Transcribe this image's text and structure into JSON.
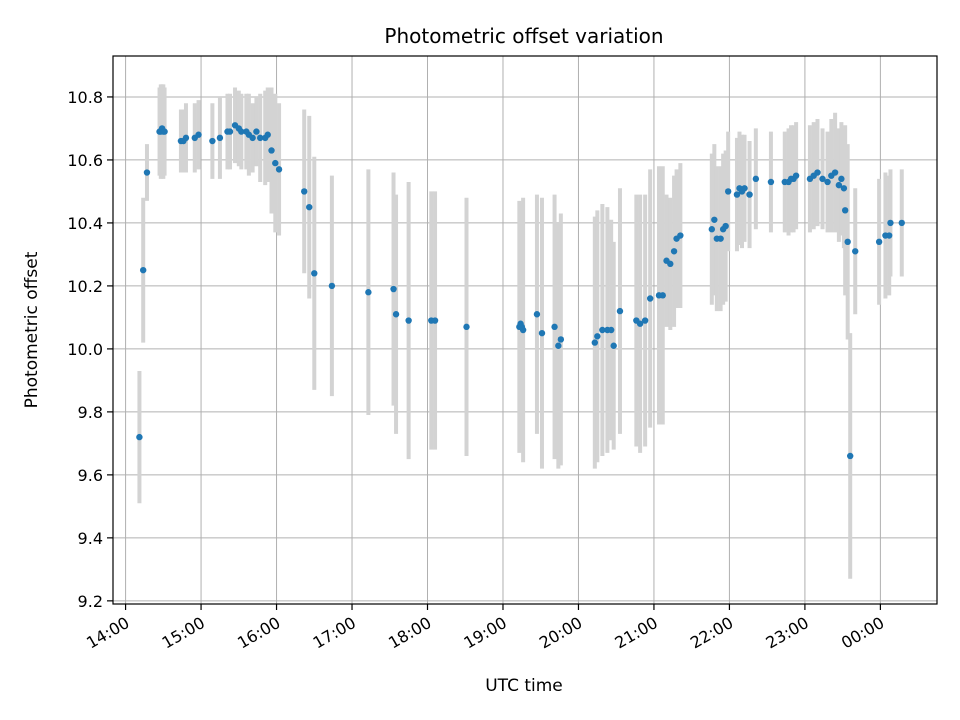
{
  "chart_data": {
    "type": "scatter",
    "title": "Photometric offset variation",
    "xlabel": "UTC time",
    "ylabel": "Photometric offset",
    "x_ticks": [
      "14:00",
      "15:00",
      "16:00",
      "17:00",
      "18:00",
      "19:00",
      "20:00",
      "21:00",
      "22:00",
      "23:00",
      "00:00"
    ],
    "y_ticks": [
      "9.2",
      "9.4",
      "9.6",
      "9.8",
      "10.0",
      "10.2",
      "10.4",
      "10.6",
      "10.8"
    ],
    "xlim": [
      "13:50",
      "00:45"
    ],
    "ylim": [
      9.19,
      10.93
    ],
    "grid": true,
    "colors": {
      "point": "#1f77b4",
      "errorbar": "#d3d3d3",
      "grid": "#b0b0b0"
    },
    "series": [
      {
        "x": [
          "14:11",
          "14:14",
          "14:17",
          "14:27",
          "14:28",
          "14:29",
          "14:30",
          "14:31",
          "14:44",
          "14:46",
          "14:48",
          "14:55",
          "14:58",
          "15:09",
          "15:15",
          "15:21",
          "15:23",
          "15:27",
          "15:30",
          "15:32",
          "15:36",
          "15:38",
          "15:41",
          "15:44",
          "15:47",
          "15:51",
          "15:53",
          "15:56",
          "15:59",
          "16:02",
          "16:22",
          "16:26",
          "16:30",
          "16:44",
          "17:13",
          "17:33",
          "17:35",
          "17:45",
          "18:03",
          "18:06",
          "18:31",
          "19:13",
          "19:14",
          "19:15",
          "19:16",
          "19:27",
          "19:31",
          "19:41",
          "19:44",
          "19:46",
          "20:13",
          "20:15",
          "20:19",
          "20:23",
          "20:26",
          "20:28",
          "20:33",
          "20:46",
          "20:49",
          "20:53",
          "20:57",
          "21:04",
          "21:07",
          "21:10",
          "21:13",
          "21:16",
          "21:18",
          "21:21",
          "21:46",
          "21:48",
          "21:50",
          "21:53",
          "21:55",
          "21:57",
          "21:59",
          "22:06",
          "22:08",
          "22:10",
          "22:12",
          "22:16",
          "22:21",
          "22:33",
          "22:44",
          "22:47",
          "22:49",
          "22:51",
          "22:53",
          "23:04",
          "23:07",
          "23:10",
          "23:14",
          "23:18",
          "23:21",
          "23:24",
          "23:27",
          "23:29",
          "23:31",
          "23:32",
          "23:34",
          "23:36",
          "23:40",
          "23:59",
          "00:04",
          "00:07",
          "00:08",
          "00:17"
        ],
        "y": [
          9.72,
          10.25,
          10.56,
          10.69,
          10.69,
          10.7,
          10.69,
          10.69,
          10.66,
          10.66,
          10.67,
          10.67,
          10.68,
          10.66,
          10.67,
          10.69,
          10.69,
          10.71,
          10.7,
          10.69,
          10.69,
          10.68,
          10.67,
          10.69,
          10.67,
          10.67,
          10.68,
          10.63,
          10.59,
          10.57,
          10.5,
          10.45,
          10.24,
          10.2,
          10.18,
          10.19,
          10.11,
          10.09,
          10.09,
          10.09,
          10.07,
          10.07,
          10.08,
          10.07,
          10.06,
          10.11,
          10.05,
          10.07,
          10.01,
          10.03,
          10.02,
          10.04,
          10.06,
          10.06,
          10.06,
          10.01,
          10.12,
          10.09,
          10.08,
          10.09,
          10.16,
          10.17,
          10.17,
          10.28,
          10.27,
          10.31,
          10.35,
          10.36,
          10.38,
          10.41,
          10.35,
          10.35,
          10.38,
          10.39,
          10.5,
          10.49,
          10.51,
          10.5,
          10.51,
          10.49,
          10.54,
          10.53,
          10.53,
          10.53,
          10.54,
          10.54,
          10.55,
          10.54,
          10.55,
          10.56,
          10.54,
          10.53,
          10.55,
          10.56,
          10.52,
          10.54,
          10.51,
          10.44,
          10.34,
          9.66,
          10.31,
          10.34,
          10.36,
          10.36,
          10.4,
          10.4
        ],
        "err": [
          0.21,
          0.23,
          0.09,
          0.14,
          0.15,
          0.14,
          0.15,
          0.14,
          0.1,
          0.1,
          0.11,
          0.11,
          0.11,
          0.12,
          0.13,
          0.12,
          0.12,
          0.12,
          0.12,
          0.12,
          0.12,
          0.13,
          0.11,
          0.11,
          0.14,
          0.15,
          0.15,
          0.2,
          0.22,
          0.21,
          0.26,
          0.29,
          0.37,
          0.35,
          0.39,
          0.37,
          0.38,
          0.44,
          0.41,
          0.41,
          0.41,
          0.4,
          0.38,
          0.38,
          0.42,
          0.38,
          0.43,
          0.42,
          0.39,
          0.4,
          0.4,
          0.4,
          0.4,
          0.39,
          0.35,
          0.33,
          0.39,
          0.4,
          0.41,
          0.4,
          0.41,
          0.41,
          0.41,
          0.21,
          0.21,
          0.24,
          0.22,
          0.23,
          0.24,
          0.24,
          0.23,
          0.23,
          0.24,
          0.24,
          0.19,
          0.18,
          0.18,
          0.18,
          0.17,
          0.17,
          0.16,
          0.16,
          0.16,
          0.17,
          0.17,
          0.17,
          0.17,
          0.17,
          0.17,
          0.17,
          0.16,
          0.16,
          0.18,
          0.19,
          0.18,
          0.18,
          0.19,
          0.27,
          0.31,
          0.39,
          0.2,
          0.2,
          0.2,
          0.19,
          0.17,
          0.17
        ]
      }
    ]
  }
}
